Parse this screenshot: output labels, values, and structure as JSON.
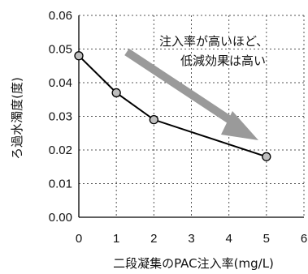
{
  "chart_data": {
    "type": "line",
    "xlabel": "二段凝集のPAC注入率(mg/L)",
    "ylabel": "ろ過水濁度(度)",
    "xlim": [
      0,
      6
    ],
    "ylim": [
      0,
      0.06
    ],
    "x_ticks": [
      "0",
      "1",
      "2",
      "3",
      "4",
      "5",
      "6"
    ],
    "y_ticks": [
      "0.00",
      "0.01",
      "0.02",
      "0.03",
      "0.04",
      "0.05",
      "0.06"
    ],
    "grid": true,
    "series": [
      {
        "x": [
          0,
          1,
          2,
          5
        ],
        "y": [
          0.048,
          0.037,
          0.029,
          0.018
        ],
        "color": "#000000",
        "marker_color": "#bfbfbf"
      }
    ],
    "annotation": {
      "lines": [
        "注入率が高いほど、",
        "低減効果は高い"
      ],
      "arrow_color": "#9a9a9a"
    }
  }
}
